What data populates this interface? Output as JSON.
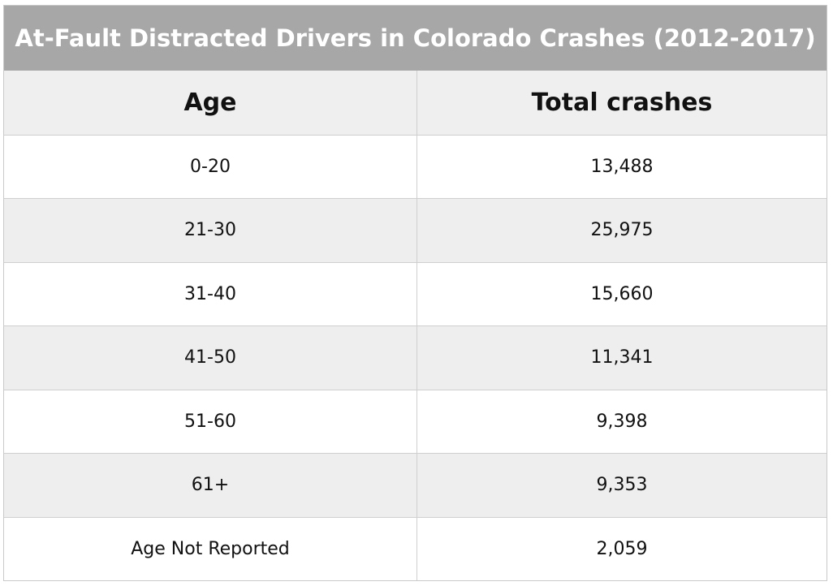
{
  "chart_data": {
    "type": "table",
    "title": "At-Fault Distracted Drivers in Colorado Crashes (2012-2017)",
    "columns": [
      "Age",
      "Total crashes"
    ],
    "rows": [
      {
        "age": "0-20",
        "total": "13,488"
      },
      {
        "age": "21-30",
        "total": "25,975"
      },
      {
        "age": "31-40",
        "total": "15,660"
      },
      {
        "age": "41-50",
        "total": "11,341"
      },
      {
        "age": "51-60",
        "total": "9,398"
      },
      {
        "age": "61+",
        "total": "9,353"
      },
      {
        "age": "Age Not Reported",
        "total": "2,059"
      }
    ]
  },
  "colors": {
    "title_background": "#a7a7a7",
    "header_background": "#efefef",
    "stripe_background": "#eeeeee",
    "border": "#cfcfcf"
  }
}
